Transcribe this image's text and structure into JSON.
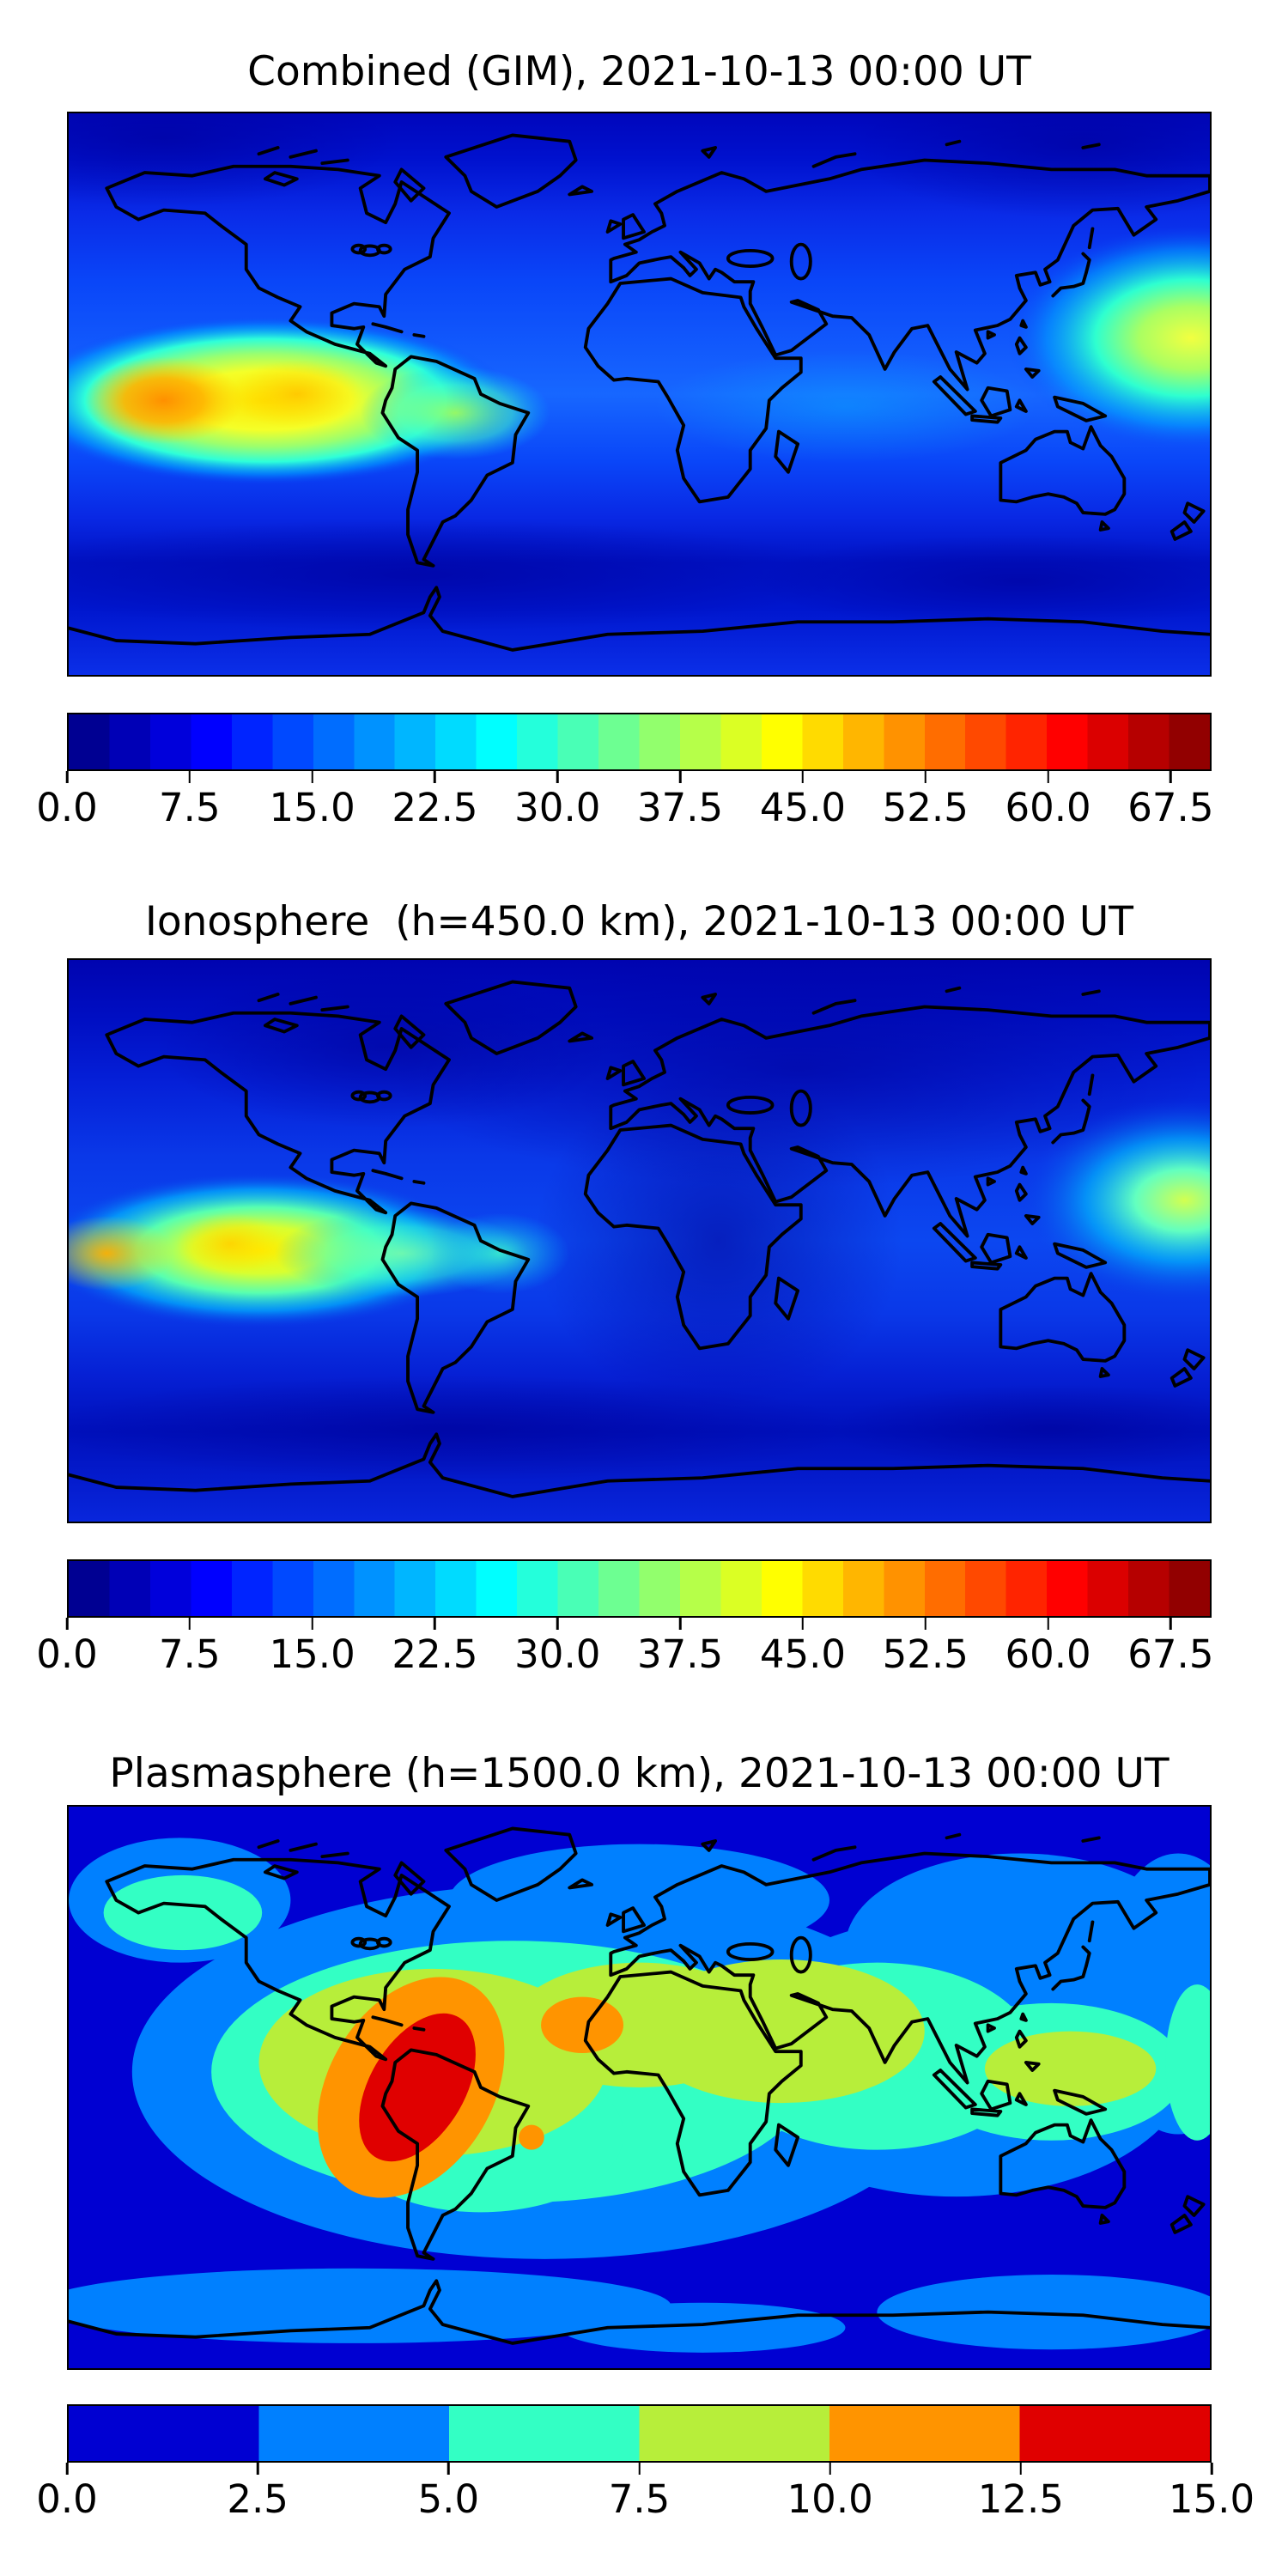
{
  "figure": {
    "background_color": "#ffffff",
    "text_color": "#000000"
  },
  "panels": [
    {
      "title": "Combined (GIM), 2021-10-13 00:00 UT",
      "colorbar": {
        "vmin": 0,
        "vmax": 70,
        "tick_values": [
          0,
          7.5,
          15,
          22.5,
          30,
          37.5,
          45,
          52.5,
          60,
          67.5
        ],
        "ticks": [
          "0.0",
          "7.5",
          "15.0",
          "22.5",
          "30.0",
          "37.5",
          "45.0",
          "52.5",
          "60.0",
          "67.5"
        ],
        "colors": [
          "#000092",
          "#0000B6",
          "#0000DB",
          "#0000FF",
          "#0024FF",
          "#0049FF",
          "#006DFF",
          "#0092FF",
          "#00B6FF",
          "#00DBFF",
          "#00FFFF",
          "#24FFDB",
          "#49FFB6",
          "#6DFF92",
          "#92FF6D",
          "#B6FF49",
          "#DBFF24",
          "#FFFF00",
          "#FFDB00",
          "#FFB600",
          "#FF9200",
          "#FF6D00",
          "#FF4900",
          "#FF2400",
          "#FF0000",
          "#DB0000",
          "#B60000",
          "#920000"
        ]
      }
    },
    {
      "title": "Ionosphere  (h=450.0 km), 2021-10-13 00:00 UT",
      "colorbar": {
        "vmin": 0,
        "vmax": 70,
        "tick_values": [
          0,
          7.5,
          15,
          22.5,
          30,
          37.5,
          45,
          52.5,
          60,
          67.5
        ],
        "ticks": [
          "0.0",
          "7.5",
          "15.0",
          "22.5",
          "30.0",
          "37.5",
          "45.0",
          "52.5",
          "60.0",
          "67.5"
        ],
        "colors": [
          "#000092",
          "#0000B6",
          "#0000DB",
          "#0000FF",
          "#0024FF",
          "#0049FF",
          "#006DFF",
          "#0092FF",
          "#00B6FF",
          "#00DBFF",
          "#00FFFF",
          "#24FFDB",
          "#49FFB6",
          "#6DFF92",
          "#92FF6D",
          "#B6FF49",
          "#DBFF24",
          "#FFFF00",
          "#FFDB00",
          "#FFB600",
          "#FF9200",
          "#FF6D00",
          "#FF4900",
          "#FF2400",
          "#FF0000",
          "#DB0000",
          "#B60000",
          "#920000"
        ]
      }
    },
    {
      "title": "Plasmasphere (h=1500.0 km), 2021-10-13 00:00 UT",
      "colorbar": {
        "vmin": 0,
        "vmax": 15,
        "tick_values": [
          0,
          2.5,
          5,
          7.5,
          10,
          12.5,
          15
        ],
        "ticks": [
          "0.0",
          "2.5",
          "5.0",
          "7.5",
          "10.0",
          "12.5",
          "15.0"
        ],
        "colors": [
          "#0000D2",
          "#0080FF",
          "#33FFC4",
          "#B7EE3A",
          "#FF9400",
          "#E00000"
        ]
      }
    }
  ],
  "chart_data": [
    {
      "type": "heatmap",
      "title": "Combined (GIM), 2021-10-13 00:00 UT",
      "projection": "equirectangular world map, lon -180..180, lat -90..90, black coastlines",
      "colormap": "jet (discrete contourf)",
      "vmin": 0,
      "vmax": 70,
      "level_step": 2.5,
      "colorbar_ticks": [
        0,
        7.5,
        15,
        22.5,
        30,
        37.5,
        45,
        52.5,
        60,
        67.5
      ],
      "features": [
        {
          "region": "equatorial central Pacific peak (~150W, 5S)",
          "value": "about 55-60 (orange)"
        },
        {
          "region": "equatorial band from 180W across Pacific to northern South America",
          "value": "about 40-50 (yellow)"
        },
        {
          "region": "west Pacific east of Philippines at right map edge (~178E, 5N)",
          "value": "about 42-48 (yellow-green)"
        },
        {
          "region": "mid-latitude oceans",
          "value": "about 10-20 (blue)"
        },
        {
          "region": "high northern latitudes and ~55-70S band",
          "value": "about 2-8 (dark navy)"
        }
      ]
    },
    {
      "type": "heatmap",
      "title": "Ionosphere  (h=450.0 km), 2021-10-13 00:00 UT",
      "projection": "equirectangular world map, lon -180..180, lat -90..90, black coastlines",
      "colormap": "jet (discrete contourf)",
      "vmin": 0,
      "vmax": 70,
      "level_step": 2.5,
      "colorbar_ticks": [
        0,
        7.5,
        15,
        22.5,
        30,
        37.5,
        45,
        52.5,
        60,
        67.5
      ],
      "features": [
        {
          "region": "equatorial Pacific cores (~170W and ~115W, 3S)",
          "value": "about 48-52 (yellow-orange)"
        },
        {
          "region": "cyan tongue over northern South America and tropical Atlantic",
          "value": "about 25-30"
        },
        {
          "region": "west Pacific blob at right map edge (~178E, 5N)",
          "value": "about 35-42 (green-yellow)"
        },
        {
          "region": "Europe, Asia, Africa night side and ~55-70S band",
          "value": "about 2-8 (dark navy)"
        }
      ]
    },
    {
      "type": "heatmap",
      "title": "Plasmasphere (h=1500.0 km), 2021-10-13 00:00 UT",
      "projection": "equirectangular world map, lon -180..180, lat -90..90, black coastlines",
      "colormap": "jet (6 discrete bands)",
      "vmin": 0,
      "vmax": 15,
      "level_step": 2.5,
      "colorbar_ticks": [
        0,
        2.5,
        5,
        7.5,
        10,
        12.5,
        15
      ],
      "features": [
        {
          "region": "dark red core tilted NE-SW over western South America (~65W, 10S)",
          "value": "12.5-15"
        },
        {
          "region": "orange ring around South America core; blob off NW Africa (~25W, 20N); small spot south Atlantic (~35W, 16S)",
          "value": "10-12.5"
        },
        {
          "region": "green-yellow band from South America across Atlantic, Africa, Arabia to India; patch over Indonesia/west Pacific",
          "value": "7.5-10"
        },
        {
          "region": "turquoise band across low-mid latitudes and north Pacific patch",
          "value": "5-7.5"
        },
        {
          "region": "dodger blue mid-latitude bands and bottom stripes",
          "value": "2.5-5"
        },
        {
          "region": "polar caps, top corners, far-right mid-south, bottom band",
          "value": "0-2.5"
        }
      ]
    }
  ]
}
